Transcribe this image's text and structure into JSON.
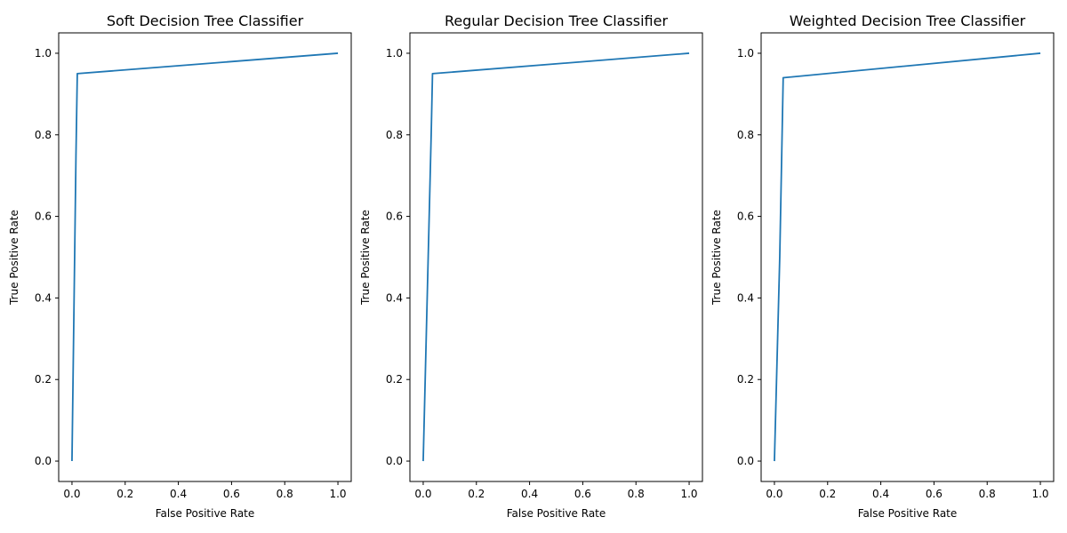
{
  "chart_data": [
    {
      "type": "line",
      "title": "Soft Decision Tree Classifier",
      "xlabel": "False Positive Rate",
      "ylabel": "True Positive Rate",
      "xlim": [
        -0.05,
        1.05
      ],
      "ylim": [
        -0.05,
        1.05
      ],
      "xticks": [
        "0.0",
        "0.2",
        "0.4",
        "0.6",
        "0.8",
        "1.0"
      ],
      "yticks": [
        "0.0",
        "0.2",
        "0.4",
        "0.6",
        "0.8",
        "1.0"
      ],
      "grid": false,
      "series": [
        {
          "color": "#1f77b4",
          "x": [
            0.0,
            0.015,
            0.02,
            1.0
          ],
          "y": [
            0.0,
            0.75,
            0.95,
            1.0
          ]
        }
      ]
    },
    {
      "type": "line",
      "title": "Regular Decision Tree Classifier",
      "xlabel": "False Positive Rate",
      "ylabel": "True Positive Rate",
      "xlim": [
        -0.05,
        1.05
      ],
      "ylim": [
        -0.05,
        1.05
      ],
      "xticks": [
        "0.0",
        "0.2",
        "0.4",
        "0.6",
        "0.8",
        "1.0"
      ],
      "yticks": [
        "0.0",
        "0.2",
        "0.4",
        "0.6",
        "0.8",
        "1.0"
      ],
      "grid": false,
      "series": [
        {
          "color": "#1f77b4",
          "x": [
            0.0,
            0.03,
            0.035,
            1.0
          ],
          "y": [
            0.0,
            0.8,
            0.95,
            1.0
          ]
        }
      ]
    },
    {
      "type": "line",
      "title": "Weighted Decision Tree Classifier",
      "xlabel": "False Positive Rate",
      "ylabel": "True Positive Rate",
      "xlim": [
        -0.05,
        1.05
      ],
      "ylim": [
        -0.05,
        1.05
      ],
      "xticks": [
        "0.0",
        "0.2",
        "0.4",
        "0.6",
        "0.8",
        "1.0"
      ],
      "yticks": [
        "0.0",
        "0.2",
        "0.4",
        "0.6",
        "0.8",
        "1.0"
      ],
      "grid": false,
      "series": [
        {
          "color": "#1f77b4",
          "x": [
            0.0,
            0.02,
            0.033,
            1.0
          ],
          "y": [
            0.0,
            0.5,
            0.94,
            1.0
          ]
        }
      ]
    }
  ]
}
